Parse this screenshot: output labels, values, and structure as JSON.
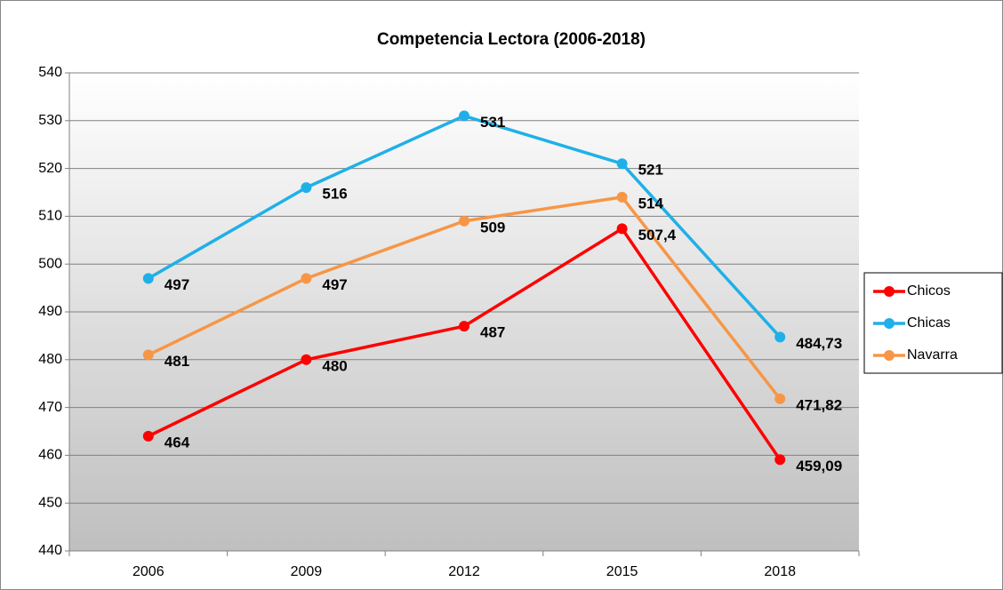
{
  "chart_data": {
    "type": "line",
    "title": "Competencia Lectora (2006-2018)",
    "categories": [
      "2006",
      "2009",
      "2012",
      "2015",
      "2018"
    ],
    "series": [
      {
        "name": "Chicos",
        "color": "#ff0000",
        "values": [
          464,
          480,
          487,
          507.4,
          459.09
        ],
        "value_labels": [
          "464",
          "480",
          "487",
          "507,4",
          "459,09"
        ]
      },
      {
        "name": "Chicas",
        "color": "#1fb0e8",
        "values": [
          497,
          516,
          531,
          521,
          484.73
        ],
        "value_labels": [
          "497",
          "516",
          "531",
          "521",
          "484,73"
        ]
      },
      {
        "name": "Navarra",
        "color": "#f79646",
        "values": [
          481,
          497,
          509,
          514,
          471.82
        ],
        "value_labels": [
          "481",
          "497",
          "509",
          "514",
          "471,82"
        ]
      }
    ],
    "ylim": [
      440,
      540
    ],
    "yticks": [
      440,
      450,
      460,
      470,
      480,
      490,
      500,
      510,
      520,
      530,
      540
    ],
    "grid": true
  }
}
